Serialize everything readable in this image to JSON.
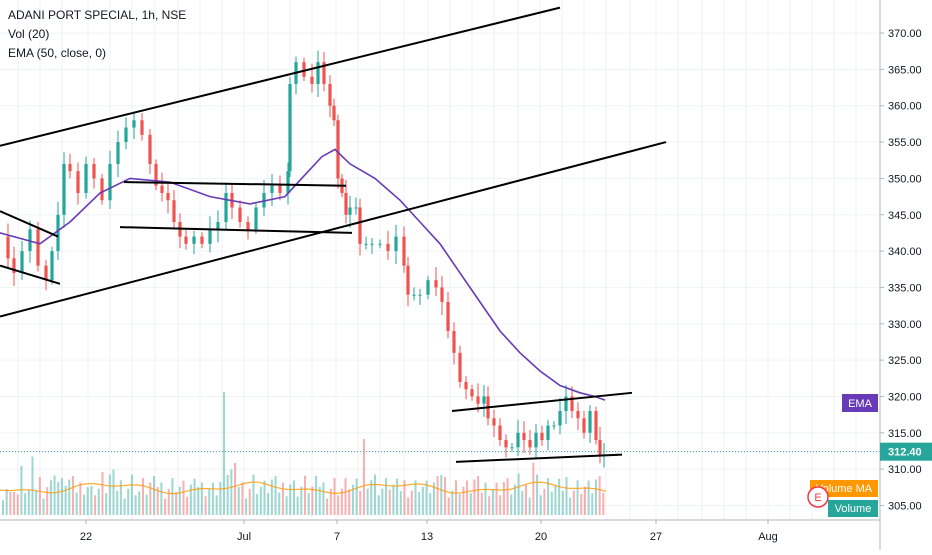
{
  "legend": {
    "symbol_line": "ADANI PORT SPECIAL, 1h, NSE",
    "vol_line": "Vol (20)",
    "ema_line": "EMA (50, close, 0)"
  },
  "chart_data": {
    "type": "candlestick",
    "instrument": "ADANI PORT SPECIAL",
    "interval": "1h",
    "exchange": "NSE",
    "price_axis": {
      "range": [
        303,
        374
      ],
      "ticks": [
        "305.00",
        "310.00",
        "315.00",
        "320.00",
        "325.00",
        "330.00",
        "335.00",
        "340.00",
        "345.00",
        "350.00",
        "355.00",
        "360.00",
        "365.00",
        "370.00"
      ],
      "tick_values": [
        305,
        310,
        315,
        320,
        325,
        330,
        335,
        340,
        345,
        350,
        355,
        360,
        365,
        370
      ]
    },
    "time_axis": {
      "labels": [
        "22",
        "Jul",
        "7",
        "13",
        "20",
        "27",
        "Aug"
      ]
    },
    "grid": true,
    "last_price": {
      "value": 312.4,
      "label": "312.40",
      "color": "#26a69a"
    },
    "ema_tag": {
      "label": "EMA",
      "color": "#673ab7"
    },
    "volume_ma_tag": {
      "label": "Volume MA",
      "color": "#ff9800"
    },
    "volume_tag": {
      "label": "Volume",
      "color": "#26a69a"
    },
    "event_marker": {
      "label": "E",
      "color": "#f23645"
    },
    "colors": {
      "up": "#26a69a",
      "down": "#ef5350",
      "ema": "#673ab7",
      "vol_ma": "#ff9800",
      "trendline": "#000000"
    },
    "candle_close_path": [
      [
        0,
        342
      ],
      [
        8,
        339
      ],
      [
        14,
        337
      ],
      [
        22,
        340
      ],
      [
        30,
        343
      ],
      [
        38,
        338
      ],
      [
        46,
        336
      ],
      [
        52,
        340
      ],
      [
        58,
        345
      ],
      [
        64,
        352
      ],
      [
        70,
        351
      ],
      [
        78,
        348
      ],
      [
        86,
        352
      ],
      [
        94,
        350
      ],
      [
        102,
        347
      ],
      [
        110,
        352
      ],
      [
        118,
        355
      ],
      [
        126,
        357
      ],
      [
        134,
        358
      ],
      [
        142,
        356
      ],
      [
        150,
        352
      ],
      [
        156,
        349
      ],
      [
        162,
        348
      ],
      [
        168,
        347
      ],
      [
        174,
        344
      ],
      [
        180,
        342
      ],
      [
        186,
        341
      ],
      [
        194,
        342
      ],
      [
        202,
        341
      ],
      [
        210,
        343
      ],
      [
        218,
        344
      ],
      [
        226,
        348
      ],
      [
        232,
        346
      ],
      [
        240,
        344
      ],
      [
        248,
        343
      ],
      [
        256,
        346
      ],
      [
        264,
        348
      ],
      [
        272,
        349
      ],
      [
        280,
        348
      ],
      [
        288,
        351
      ],
      [
        290,
        363
      ],
      [
        296,
        366
      ],
      [
        304,
        364
      ],
      [
        312,
        363
      ],
      [
        318,
        366
      ],
      [
        324,
        363
      ],
      [
        330,
        360
      ],
      [
        334,
        358
      ],
      [
        338,
        350
      ],
      [
        342,
        348
      ],
      [
        346,
        345
      ],
      [
        350,
        346
      ],
      [
        356,
        346
      ],
      [
        360,
        341
      ],
      [
        366,
        341
      ],
      [
        372,
        341
      ],
      [
        380,
        341
      ],
      [
        388,
        340
      ],
      [
        396,
        342
      ],
      [
        404,
        338
      ],
      [
        408,
        334
      ],
      [
        414,
        334
      ],
      [
        420,
        334
      ],
      [
        428,
        336
      ],
      [
        436,
        335
      ],
      [
        442,
        333
      ],
      [
        448,
        329
      ],
      [
        454,
        326
      ],
      [
        460,
        322
      ],
      [
        466,
        321
      ],
      [
        472,
        320
      ],
      [
        478,
        319
      ],
      [
        484,
        320
      ],
      [
        488,
        317
      ],
      [
        494,
        316
      ],
      [
        500,
        314
      ],
      [
        506,
        313
      ],
      [
        512,
        313
      ],
      [
        518,
        315
      ],
      [
        524,
        314
      ],
      [
        530,
        313
      ],
      [
        536,
        315
      ],
      [
        542,
        314
      ],
      [
        548,
        316
      ],
      [
        554,
        316
      ],
      [
        560,
        318
      ],
      [
        566,
        320
      ],
      [
        572,
        318
      ],
      [
        578,
        317
      ],
      [
        584,
        315
      ],
      [
        590,
        318
      ],
      [
        596,
        314
      ],
      [
        600,
        312
      ],
      [
        604,
        312
      ]
    ],
    "ema_path": [
      [
        0,
        342.5
      ],
      [
        40,
        341
      ],
      [
        70,
        344
      ],
      [
        100,
        348
      ],
      [
        130,
        350
      ],
      [
        170,
        349.5
      ],
      [
        210,
        347.5
      ],
      [
        250,
        346.5
      ],
      [
        285,
        347.5
      ],
      [
        305,
        350.5
      ],
      [
        322,
        353
      ],
      [
        335,
        354
      ],
      [
        350,
        352
      ],
      [
        375,
        350
      ],
      [
        400,
        347
      ],
      [
        420,
        344
      ],
      [
        440,
        341
      ],
      [
        460,
        337
      ],
      [
        480,
        333
      ],
      [
        500,
        329
      ],
      [
        520,
        326
      ],
      [
        540,
        323.5
      ],
      [
        560,
        321.5
      ],
      [
        580,
        320.5
      ],
      [
        595,
        320
      ],
      [
        605,
        319.5
      ]
    ],
    "volume_values": [
      0.25,
      0.3,
      0.2,
      0.35,
      0.22,
      0.4,
      0.3,
      0.25,
      0.45,
      0.3,
      0.35,
      0.28,
      0.32,
      0.3,
      0.6,
      0.35,
      0.3,
      0.4,
      0.35,
      0.3,
      0.28,
      0.3,
      0.35,
      0.32,
      0.25,
      0.3,
      0.28,
      0.35,
      0.3,
      0.4,
      0.35,
      0.3,
      0.32,
      0.28,
      0.3,
      0.35,
      0.3,
      0.25,
      0.3,
      0.28,
      0.32,
      0.3,
      0.35,
      0.3,
      0.28,
      0.3,
      0.32,
      0.35,
      0.3,
      0.28,
      0.25,
      0.3,
      0.28,
      0.35,
      0.3,
      0.32,
      0.3,
      0.28,
      0.3,
      0.35,
      1.0,
      0.55,
      0.45,
      0.4,
      0.35,
      0.3,
      0.28,
      0.3,
      0.35,
      0.32,
      0.3,
      0.28,
      0.3,
      0.35,
      0.3,
      0.28,
      0.3,
      0.32,
      0.35,
      0.3,
      0.28,
      0.3,
      0.32,
      0.3,
      0.28,
      0.3,
      0.35,
      0.3,
      0.28,
      0.3,
      0.32,
      0.3,
      0.28,
      0.3,
      0.35,
      0.3,
      0.28,
      0.3,
      0.7,
      0.45,
      0.4,
      0.35,
      0.3,
      0.28,
      0.3,
      0.35,
      0.3,
      0.28,
      0.3,
      0.32,
      0.3,
      0.28,
      0.3,
      0.35,
      0.3,
      0.28,
      0.3,
      0.32,
      0.3,
      0.5,
      0.35,
      0.3,
      0.28,
      0.3,
      0.32,
      0.3,
      0.28,
      0.3,
      0.35,
      0.3,
      0.28,
      0.3,
      0.32,
      0.3,
      0.28,
      0.3,
      0.35,
      0.3,
      0.28,
      0.3,
      0.32,
      0.3,
      0.28,
      0.3,
      0.6,
      0.35,
      0.3,
      0.28,
      0.3,
      0.32,
      0.3,
      0.28,
      0.3,
      0.35,
      0.3,
      0.28,
      0.3,
      0.32,
      0.3,
      0.28,
      0.3,
      0.35,
      0.3,
      0.28
    ],
    "trendlines": [
      {
        "name": "upper-channel-line",
        "from": [
          0,
          354.5
        ],
        "to": [
          560,
          373.5
        ]
      },
      {
        "name": "lower-channel-line",
        "from": [
          0,
          331
        ],
        "to": [
          666,
          355
        ]
      },
      {
        "name": "left-wedge-top-line",
        "from": [
          0,
          345.5
        ],
        "to": [
          58,
          342
        ]
      },
      {
        "name": "left-wedge-bottom-line",
        "from": [
          0,
          338
        ],
        "to": [
          60,
          335.5
        ]
      },
      {
        "name": "range-top-line",
        "from": [
          124,
          349.5
        ],
        "to": [
          346,
          349
        ]
      },
      {
        "name": "range-bottom-line",
        "from": [
          120,
          343.3
        ],
        "to": [
          352,
          342.5
        ]
      },
      {
        "name": "base-top-line",
        "from": [
          452,
          318
        ],
        "to": [
          632,
          320.5
        ]
      },
      {
        "name": "base-bottom-line",
        "from": [
          456,
          311
        ],
        "to": [
          622,
          312
        ]
      }
    ]
  }
}
